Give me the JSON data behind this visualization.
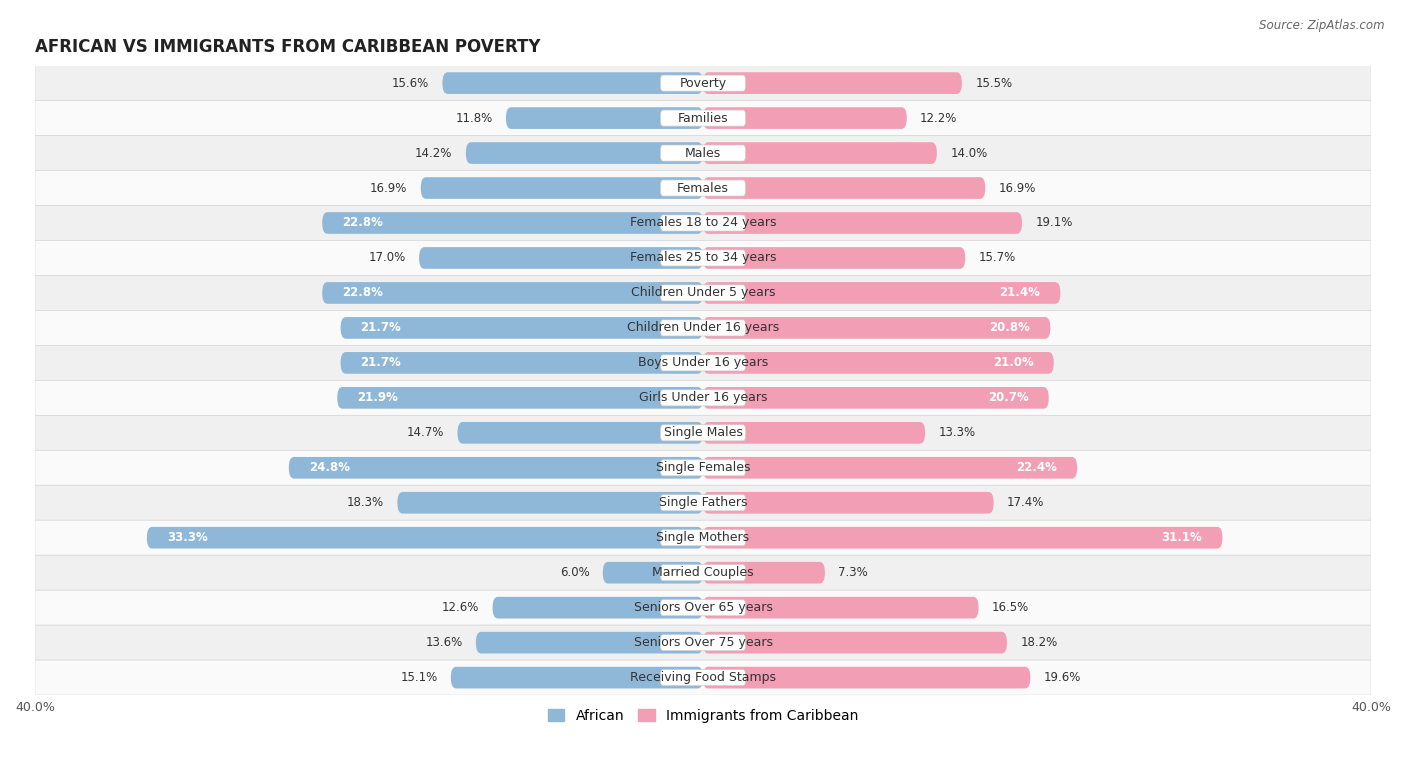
{
  "title": "AFRICAN VS IMMIGRANTS FROM CARIBBEAN POVERTY",
  "source": "Source: ZipAtlas.com",
  "categories": [
    "Poverty",
    "Families",
    "Males",
    "Females",
    "Females 18 to 24 years",
    "Females 25 to 34 years",
    "Children Under 5 years",
    "Children Under 16 years",
    "Boys Under 16 years",
    "Girls Under 16 years",
    "Single Males",
    "Single Females",
    "Single Fathers",
    "Single Mothers",
    "Married Couples",
    "Seniors Over 65 years",
    "Seniors Over 75 years",
    "Receiving Food Stamps"
  ],
  "african_values": [
    15.6,
    11.8,
    14.2,
    16.9,
    22.8,
    17.0,
    22.8,
    21.7,
    21.7,
    21.9,
    14.7,
    24.8,
    18.3,
    33.3,
    6.0,
    12.6,
    13.6,
    15.1
  ],
  "caribbean_values": [
    15.5,
    12.2,
    14.0,
    16.9,
    19.1,
    15.7,
    21.4,
    20.8,
    21.0,
    20.7,
    13.3,
    22.4,
    17.4,
    31.1,
    7.3,
    16.5,
    18.2,
    19.6
  ],
  "african_color": "#8fb8d8",
  "caribbean_color": "#f29eb5",
  "xlim": 40.0,
  "bar_height": 0.62,
  "row_colors": [
    "#f0f0f0",
    "#fafafa"
  ],
  "label_fontsize": 9.0,
  "value_fontsize": 8.5,
  "title_fontsize": 12,
  "source_fontsize": 8.5,
  "legend_fontsize": 10,
  "axis_label_fontsize": 9.0,
  "value_inside_threshold": 20.0,
  "row_border_color": "#d8d8d8"
}
